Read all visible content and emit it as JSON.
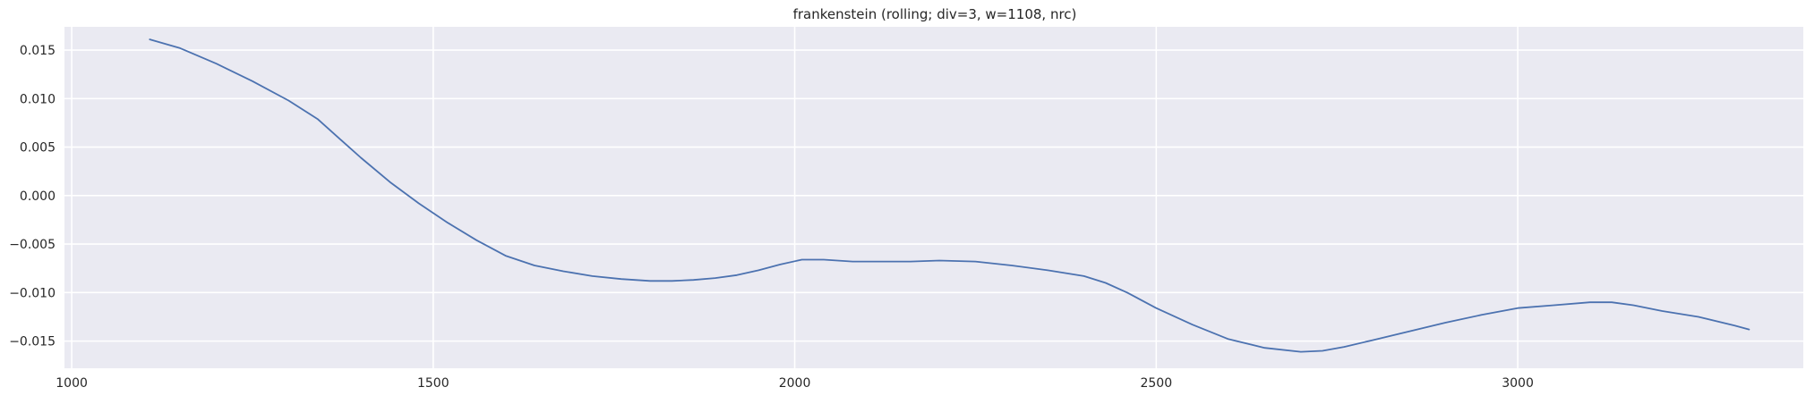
{
  "chart_data": {
    "type": "line",
    "title": "frankenstein  (rolling; div=3, w=1108, nrc)",
    "xlabel": "",
    "ylabel": "",
    "xlim": [
      990,
      3395
    ],
    "ylim": [
      -0.0178,
      0.0174
    ],
    "xticks": [
      1000,
      1500,
      2000,
      2500,
      3000
    ],
    "xtick_labels": [
      "1000",
      "1500",
      "2000",
      "2500",
      "3000"
    ],
    "yticks": [
      0.015,
      0.01,
      0.005,
      0.0,
      -0.005,
      -0.01,
      -0.015
    ],
    "ytick_labels": [
      "0.015",
      "0.010",
      "0.005",
      "0.000",
      "−0.005",
      "−0.010",
      "−0.015"
    ],
    "grid": true,
    "legend": "none",
    "colors": {
      "background": "#eaeaf2",
      "grid": "#ffffff",
      "line": "#4c72b0"
    },
    "series": [
      {
        "x": [
          1108,
          1150,
          1200,
          1250,
          1300,
          1340,
          1370,
          1400,
          1440,
          1480,
          1520,
          1560,
          1600,
          1640,
          1680,
          1720,
          1760,
          1800,
          1830,
          1860,
          1890,
          1920,
          1950,
          1980,
          2010,
          2040,
          2080,
          2120,
          2160,
          2200,
          2250,
          2300,
          2350,
          2400,
          2430,
          2460,
          2500,
          2550,
          2600,
          2650,
          2700,
          2730,
          2760,
          2800,
          2850,
          2900,
          2950,
          3000,
          3050,
          3100,
          3130,
          3160,
          3200,
          3250,
          3300,
          3320
        ],
        "y": [
          0.0161,
          0.0152,
          0.0136,
          0.0118,
          0.0098,
          0.0079,
          0.0059,
          0.0039,
          0.0014,
          -0.0008,
          -0.0028,
          -0.0046,
          -0.0062,
          -0.0072,
          -0.0078,
          -0.0083,
          -0.0086,
          -0.0088,
          -0.0088,
          -0.0087,
          -0.0085,
          -0.0082,
          -0.0077,
          -0.0071,
          -0.0066,
          -0.0066,
          -0.0068,
          -0.0068,
          -0.0068,
          -0.0067,
          -0.0068,
          -0.0072,
          -0.0077,
          -0.0083,
          -0.009,
          -0.01,
          -0.0116,
          -0.0133,
          -0.0148,
          -0.0157,
          -0.0161,
          -0.016,
          -0.0156,
          -0.0149,
          -0.014,
          -0.0131,
          -0.0123,
          -0.0116,
          -0.0113,
          -0.011,
          -0.011,
          -0.0113,
          -0.0119,
          -0.0125,
          -0.0134,
          -0.0138
        ]
      }
    ]
  }
}
